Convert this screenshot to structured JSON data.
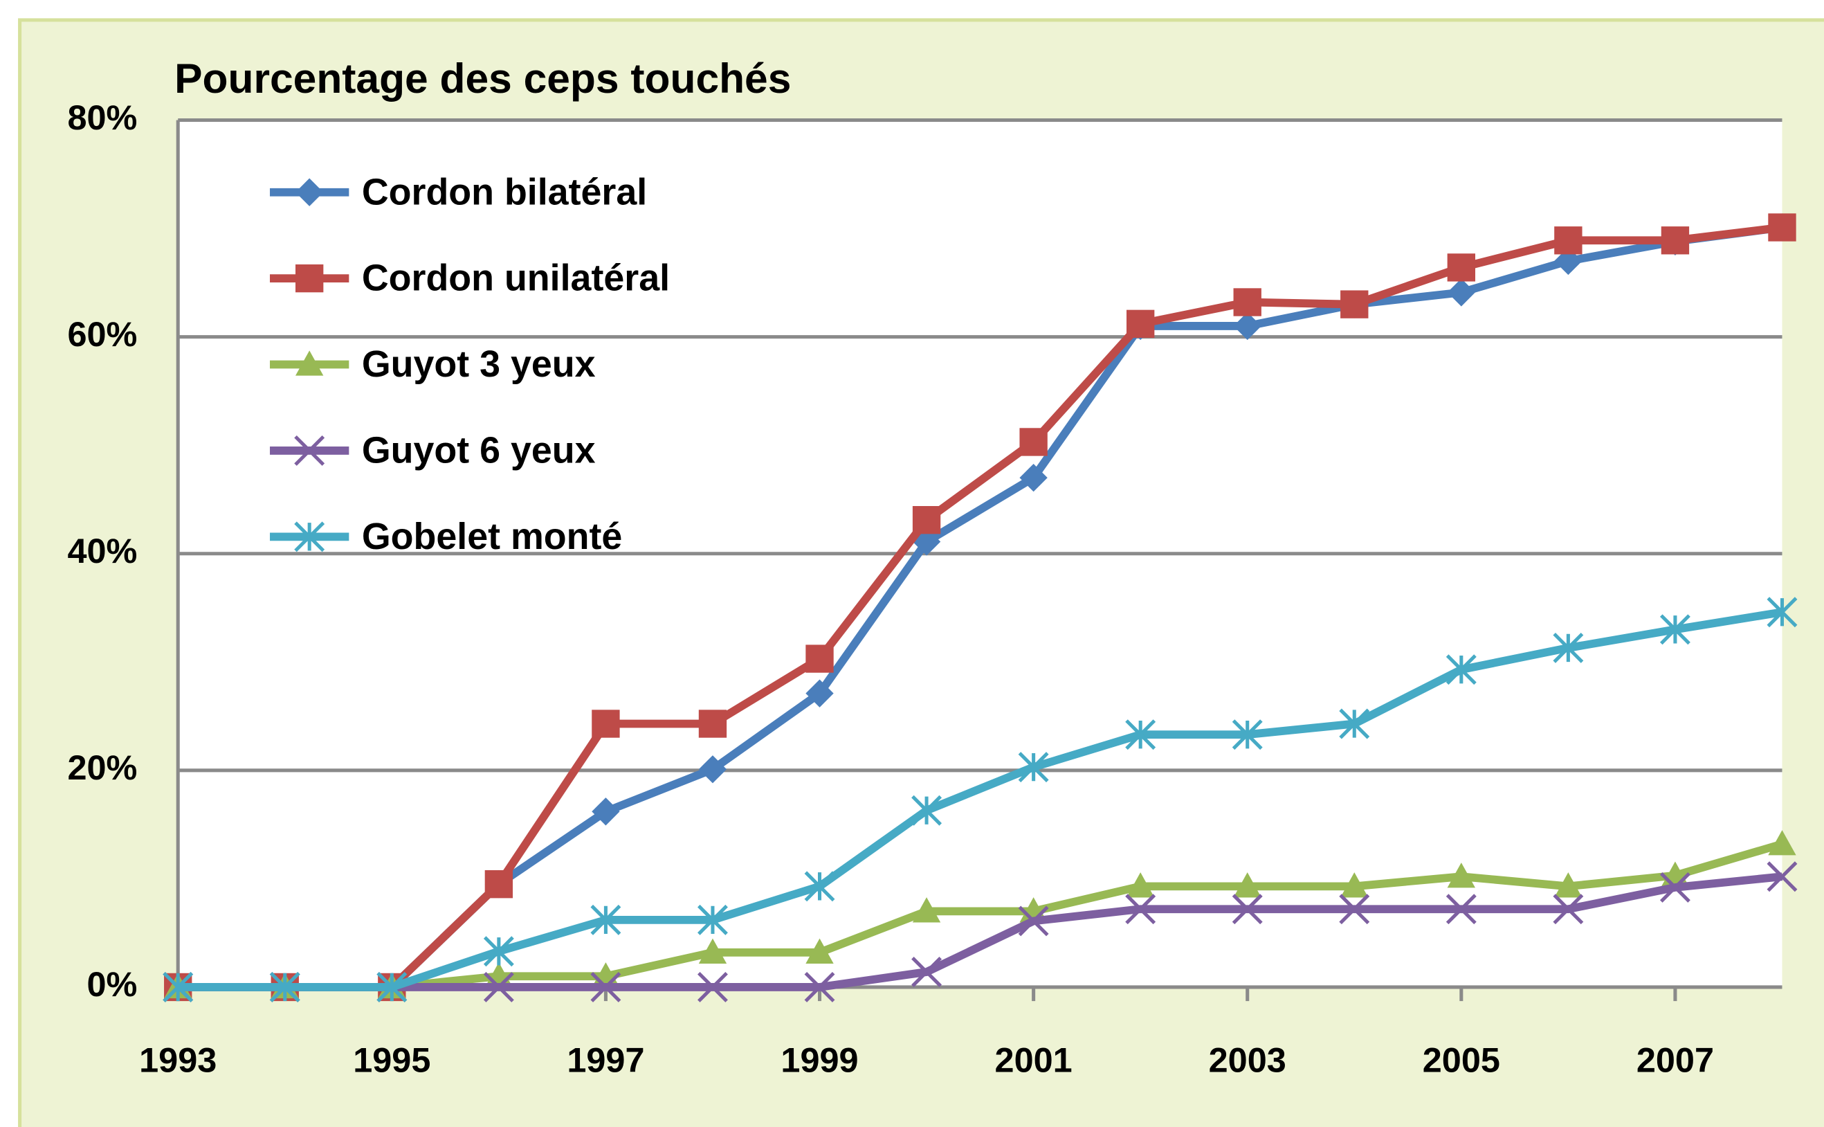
{
  "chart_data": {
    "type": "line",
    "title": "Pourcentage des ceps touchés",
    "x": [
      1993,
      1994,
      1995,
      1996,
      1997,
      1998,
      1999,
      2000,
      2001,
      2002,
      2003,
      2004,
      2005,
      2006,
      2007,
      2008
    ],
    "xlim": [
      1993,
      2008
    ],
    "xticks": [
      1993,
      1995,
      1997,
      1999,
      2001,
      2003,
      2005,
      2007
    ],
    "ylim": [
      0,
      80
    ],
    "yticks": [
      {
        "value": 0,
        "label": "0%"
      },
      {
        "value": 20,
        "label": "20%"
      },
      {
        "value": 40,
        "label": "40%"
      },
      {
        "value": 60,
        "label": "60%"
      },
      {
        "value": 80,
        "label": "80%"
      }
    ],
    "grid": true,
    "legend": "top-left",
    "series": [
      {
        "name": "Cordon bilatéral",
        "color": "#4a7ebb",
        "marker": "diamond",
        "values": [
          0,
          0,
          0,
          9.5,
          16.2,
          20.1,
          27.1,
          41.1,
          47,
          61,
          61,
          63,
          64.1,
          67,
          68.8,
          70.1
        ]
      },
      {
        "name": "Cordon unilatéral",
        "color": "#be4b48",
        "marker": "square",
        "values": [
          0,
          0,
          0,
          9.5,
          24.3,
          24.3,
          30.3,
          43.1,
          50.3,
          61.2,
          63.2,
          63,
          66.4,
          68.9,
          68.9,
          70.1
        ]
      },
      {
        "name": "Guyot 3 yeux",
        "color": "#98b954",
        "marker": "triangle",
        "values": [
          0,
          0,
          0,
          1,
          1,
          3.2,
          3.2,
          7,
          7,
          9.3,
          9.3,
          9.3,
          10.2,
          9.3,
          10.3,
          13.2
        ]
      },
      {
        "name": "Guyot 6 yeux",
        "color": "#7d5fa0",
        "marker": "x",
        "values": [
          0,
          0,
          0,
          0,
          0,
          0,
          0,
          1.4,
          6.1,
          7.2,
          7.2,
          7.2,
          7.2,
          7.2,
          9.2,
          10.2
        ]
      },
      {
        "name": "Gobelet monté",
        "color": "#46aac5",
        "marker": "star",
        "values": [
          0,
          0,
          0,
          3.3,
          6.2,
          6.2,
          9.3,
          16.3,
          20.3,
          23.3,
          23.3,
          24.3,
          29.3,
          31.3,
          33,
          34.6
        ]
      }
    ]
  }
}
